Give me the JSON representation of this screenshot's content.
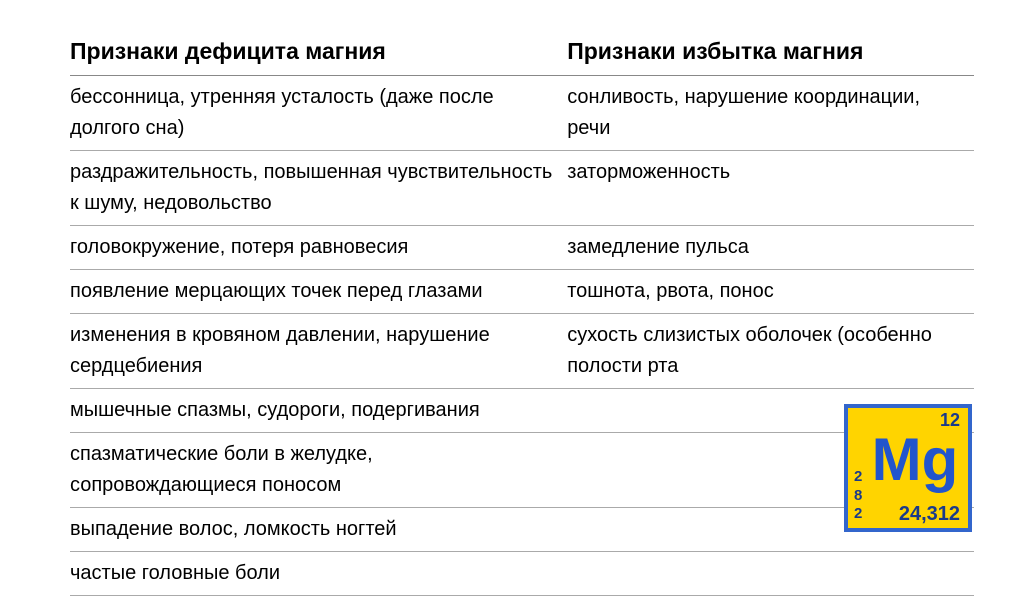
{
  "table": {
    "headers": {
      "deficiency": "Признаки дефицита магния",
      "excess": "Признаки избытка магния"
    },
    "rows": [
      {
        "deficiency": "бессонница, утренняя усталость (даже после долгого сна)",
        "excess": "сонливость, нарушение координации, речи"
      },
      {
        "deficiency": "раздражительность, повышенная чувствительность к шуму, недовольство",
        "excess": "заторможенность"
      },
      {
        "deficiency": "головокружение, потеря равновесия",
        "excess": "замедление пульса"
      },
      {
        "deficiency": "появление мерцающих точек перед глазами",
        "excess": "тошнота, рвота, понос"
      },
      {
        "deficiency": "изменения в кровяном давлении, нарушение сердцебиения",
        "excess": "сухость слизистых оболочек (особенно полости рта"
      },
      {
        "deficiency": "мышечные спазмы, судороги, подергивания",
        "excess": ""
      },
      {
        "deficiency": "спазматические боли в желудке, сопровождающиеся поносом",
        "excess": ""
      },
      {
        "deficiency": "выпадение волос, ломкость ногтей",
        "excess": ""
      },
      {
        "deficiency": "частые головные боли",
        "excess": ""
      }
    ]
  },
  "element": {
    "atomic_number": "12",
    "symbol": "Mg",
    "mass": "24,312",
    "shells": [
      "2",
      "8",
      "2"
    ],
    "bg_color": "#ffd400",
    "border_color": "#3366cc",
    "text_color": "#1a3a8a",
    "symbol_color": "#2255cc"
  }
}
